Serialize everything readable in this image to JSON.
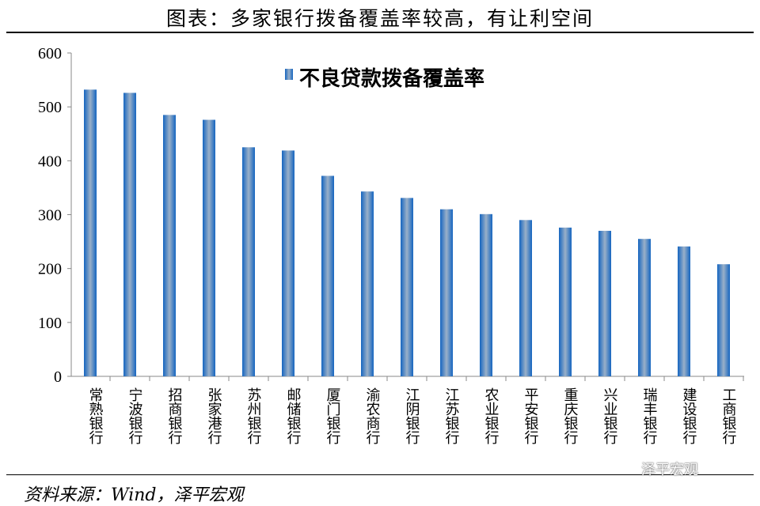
{
  "title": "图表：多家银行拨备覆盖率较高，有让利空间",
  "source": "资料来源：Wind，泽平宏观",
  "watermark": "泽平宏观",
  "colors": {
    "bar_edge": "#1565c0",
    "bar_center": "#9ab0c8"
  },
  "chart_data": {
    "type": "bar",
    "title": "图表：多家银行拨备覆盖率较高，有让利空间",
    "legend": [
      "不良贷款拨备覆盖率"
    ],
    "legend_position": "top-center",
    "xlabel": "",
    "ylabel": "",
    "ylim": [
      0,
      600
    ],
    "yticks": [
      0,
      100,
      200,
      300,
      400,
      500,
      600
    ],
    "grid": false,
    "categories": [
      "常熟银行",
      "宁波银行",
      "招商银行",
      "张家港行",
      "苏州银行",
      "邮储银行",
      "厦门银行",
      "渝农商行",
      "江阴银行",
      "江苏银行",
      "农业银行",
      "平安银行",
      "重庆银行",
      "兴业银行",
      "瑞丰银行",
      "建设银行",
      "工商银行"
    ],
    "series": [
      {
        "name": "不良贷款拨备覆盖率",
        "values": [
          532,
          526,
          485,
          476,
          425,
          419,
          372,
          343,
          331,
          310,
          301,
          290,
          276,
          270,
          255,
          241,
          208
        ]
      }
    ]
  }
}
